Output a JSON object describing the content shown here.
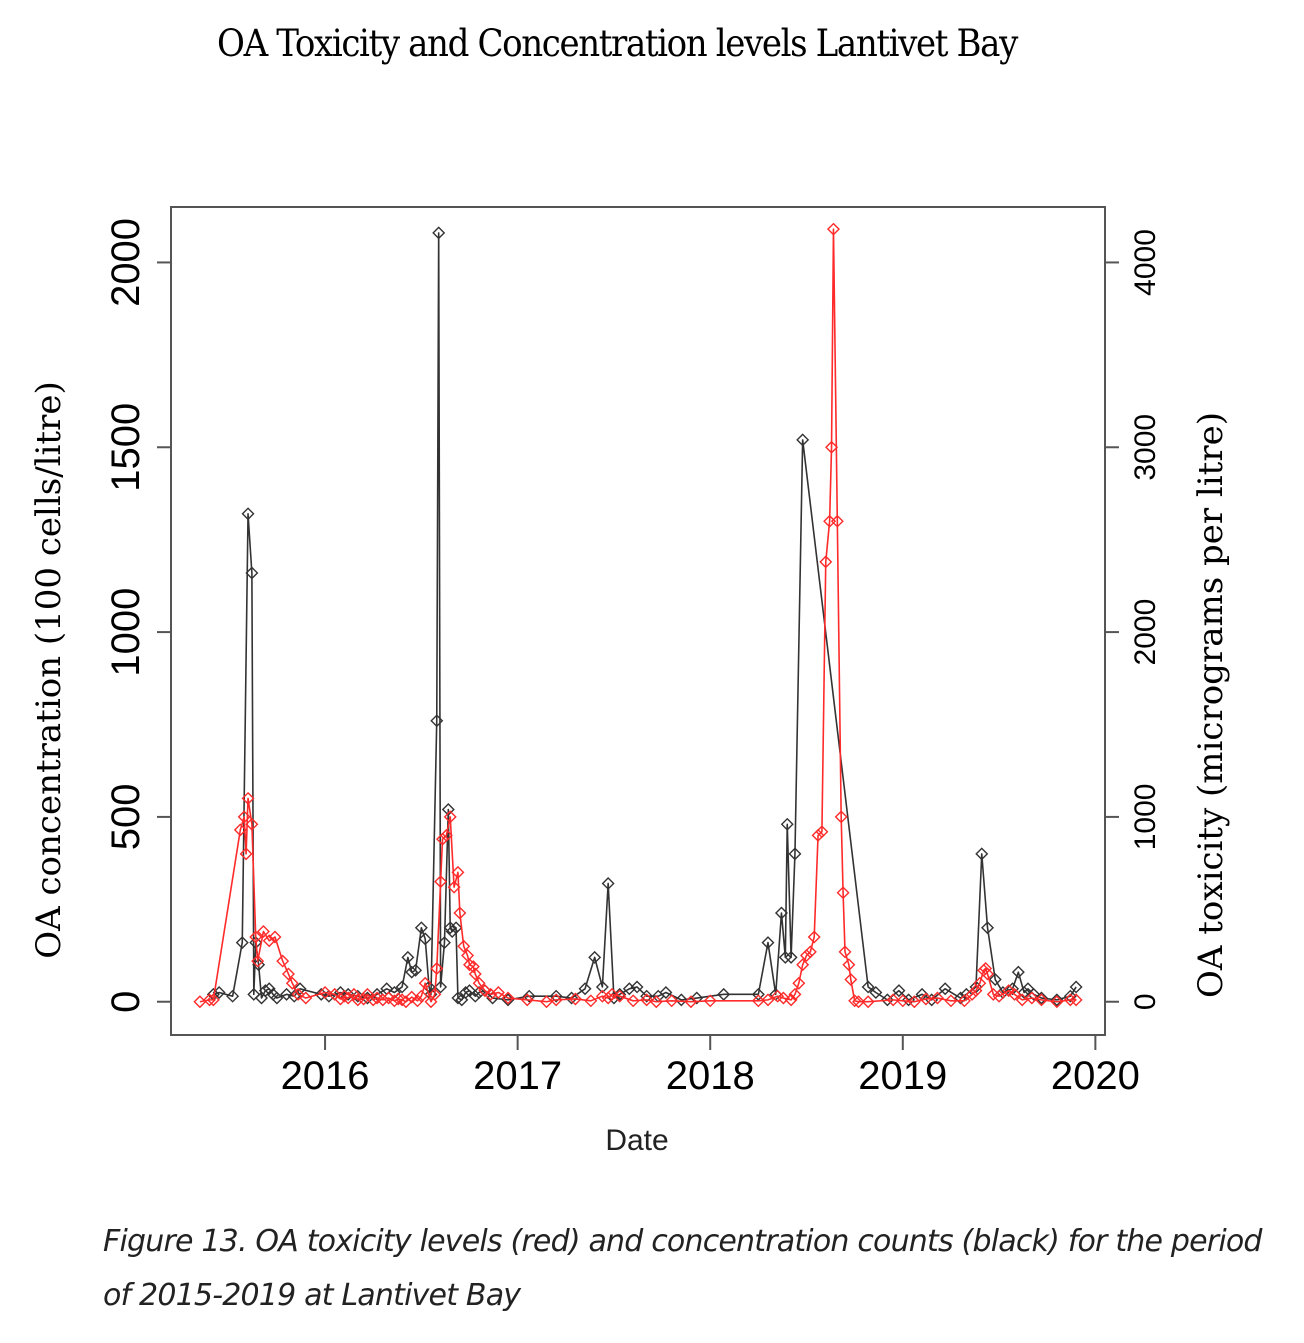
{
  "title": "OA Toxicity and Concentration levels Lantivet Bay",
  "caption": "Figure 13. OA toxicity levels (red) and concentration counts (black) for the period of 2015-2019 at Lantivet Bay",
  "chart_data": {
    "type": "line",
    "title": "OA Toxicity and Concentration levels Lantivet Bay",
    "xlabel": "Date",
    "ylabel": "OA concentration (100 cells/litre)",
    "y2label": "OA toxicity (micrograms per litre)",
    "xlim": [
      2015.2,
      2020.05
    ],
    "ylim": [
      -90,
      2150
    ],
    "y2lim": [
      -180,
      4300
    ],
    "x_ticks": [
      2016,
      2017,
      2018,
      2019,
      2020
    ],
    "x_tick_labels": [
      "2016",
      "2017",
      "2018",
      "2019",
      "2020"
    ],
    "y_ticks": [
      0,
      500,
      1000,
      1500,
      2000
    ],
    "y_tick_labels": [
      "0",
      "500",
      "1000",
      "1500",
      "2000"
    ],
    "y2_ticks": [
      0,
      1000,
      2000,
      3000,
      4000
    ],
    "y2_tick_labels": [
      "0",
      "1000",
      "2000",
      "3000",
      "4000"
    ],
    "grid": false,
    "legend": "none",
    "series": [
      {
        "name": "OA concentration (black)",
        "axis": "left",
        "color": "#000000",
        "marker": "diamond",
        "x": [
          2015.42,
          2015.45,
          2015.52,
          2015.57,
          2015.6,
          2015.62,
          2015.63,
          2015.64,
          2015.655,
          2015.67,
          2015.69,
          2015.71,
          2015.73,
          2015.75,
          2015.8,
          2015.84,
          2015.87,
          2015.98,
          2016.02,
          2016.08,
          2016.12,
          2016.17,
          2016.22,
          2016.27,
          2016.32,
          2016.36,
          2016.4,
          2016.43,
          2016.45,
          2016.47,
          2016.5,
          2016.52,
          2016.54,
          2016.55,
          2016.58,
          2016.59,
          2016.6,
          2016.62,
          2016.64,
          2016.65,
          2016.66,
          2016.68,
          2016.69,
          2016.71,
          2016.73,
          2016.75,
          2016.78,
          2016.8,
          2016.83,
          2016.87,
          2016.95,
          2017.06,
          2017.2,
          2017.28,
          2017.35,
          2017.4,
          2017.44,
          2017.47,
          2017.5,
          2017.53,
          2017.58,
          2017.62,
          2017.67,
          2017.73,
          2017.77,
          2017.85,
          2017.93,
          2018.07,
          2018.25,
          2018.3,
          2018.34,
          2018.37,
          2018.39,
          2018.4,
          2018.42,
          2018.44,
          2018.48,
          2018.82,
          2018.86,
          2018.92,
          2018.98,
          2019.03,
          2019.1,
          2019.15,
          2019.22,
          2019.3,
          2019.33,
          2019.38,
          2019.41,
          2019.44,
          2019.48,
          2019.52,
          2019.57,
          2019.6,
          2019.63,
          2019.65,
          2019.68,
          2019.72,
          2019.8,
          2019.87,
          2019.9
        ],
        "values": [
          20,
          25,
          15,
          160,
          1320,
          1160,
          20,
          160,
          100,
          10,
          30,
          35,
          20,
          10,
          20,
          15,
          35,
          20,
          15,
          25,
          20,
          15,
          10,
          20,
          35,
          25,
          40,
          120,
          80,
          85,
          200,
          170,
          40,
          20,
          760,
          2080,
          40,
          160,
          520,
          200,
          190,
          200,
          10,
          5,
          25,
          30,
          15,
          25,
          30,
          10,
          5,
          15,
          15,
          10,
          35,
          120,
          40,
          320,
          10,
          20,
          35,
          40,
          15,
          15,
          25,
          5,
          10,
          20,
          20,
          160,
          20,
          240,
          120,
          480,
          120,
          400,
          1520,
          40,
          25,
          5,
          30,
          5,
          20,
          5,
          35,
          10,
          20,
          40,
          400,
          200,
          60,
          25,
          35,
          80,
          25,
          35,
          20,
          10,
          5,
          15,
          40
        ]
      },
      {
        "name": "OA toxicity (red)",
        "axis": "right",
        "color": "#ff0000",
        "marker": "diamond",
        "x": [
          2015.35,
          2015.4,
          2015.42,
          2015.56,
          2015.58,
          2015.59,
          2015.6,
          2015.62,
          2015.64,
          2015.65,
          2015.68,
          2015.71,
          2015.74,
          2015.78,
          2015.81,
          2015.83,
          2015.86,
          2015.9,
          2016.0,
          2016.05,
          2016.08,
          2016.1,
          2016.12,
          2016.15,
          2016.17,
          2016.2,
          2016.22,
          2016.25,
          2016.27,
          2016.3,
          2016.33,
          2016.36,
          2016.38,
          2016.4,
          2016.42,
          2016.45,
          2016.48,
          2016.5,
          2016.52,
          2016.55,
          2016.57,
          2016.58,
          2016.6,
          2016.61,
          2016.63,
          2016.65,
          2016.67,
          2016.69,
          2016.7,
          2016.72,
          2016.74,
          2016.75,
          2016.77,
          2016.78,
          2016.8,
          2016.83,
          2016.86,
          2016.9,
          2016.95,
          2017.05,
          2017.15,
          2017.2,
          2017.3,
          2017.38,
          2017.44,
          2017.47,
          2017.49,
          2017.53,
          2017.6,
          2017.67,
          2017.72,
          2017.8,
          2017.9,
          2018.0,
          2018.25,
          2018.3,
          2018.35,
          2018.38,
          2018.42,
          2018.44,
          2018.46,
          2018.48,
          2018.5,
          2018.52,
          2018.54,
          2018.56,
          2018.58,
          2018.6,
          2018.62,
          2018.63,
          2018.64,
          2018.66,
          2018.68,
          2018.69,
          2018.7,
          2018.72,
          2018.73,
          2018.75,
          2018.77,
          2018.82,
          2018.95,
          2019.0,
          2019.06,
          2019.12,
          2019.18,
          2019.25,
          2019.32,
          2019.36,
          2019.38,
          2019.4,
          2019.42,
          2019.43,
          2019.44,
          2019.47,
          2019.5,
          2019.55,
          2019.58,
          2019.62,
          2019.67,
          2019.72,
          2019.8,
          2019.87,
          2019.9
        ],
        "values": [
          0,
          10,
          10,
          930,
          1000,
          800,
          1100,
          960,
          350,
          220,
          380,
          330,
          350,
          220,
          150,
          100,
          40,
          20,
          50,
          40,
          15,
          30,
          20,
          40,
          10,
          15,
          40,
          10,
          20,
          10,
          20,
          5,
          15,
          10,
          0,
          25,
          5,
          30,
          100,
          0,
          40,
          180,
          650,
          880,
          900,
          1000,
          620,
          700,
          480,
          300,
          250,
          200,
          190,
          150,
          100,
          60,
          40,
          50,
          20,
          10,
          0,
          10,
          15,
          5,
          30,
          20,
          40,
          30,
          5,
          10,
          0,
          5,
          0,
          5,
          5,
          10,
          30,
          20,
          10,
          40,
          100,
          200,
          250,
          270,
          350,
          900,
          920,
          2380,
          2600,
          3000,
          4180,
          2600,
          1000,
          590,
          270,
          200,
          120,
          5,
          0,
          0,
          10,
          5,
          0,
          15,
          20,
          5,
          5,
          40,
          60,
          100,
          170,
          180,
          150,
          40,
          30,
          60,
          40,
          10,
          20,
          10,
          0,
          10,
          10
        ]
      }
    ]
  }
}
